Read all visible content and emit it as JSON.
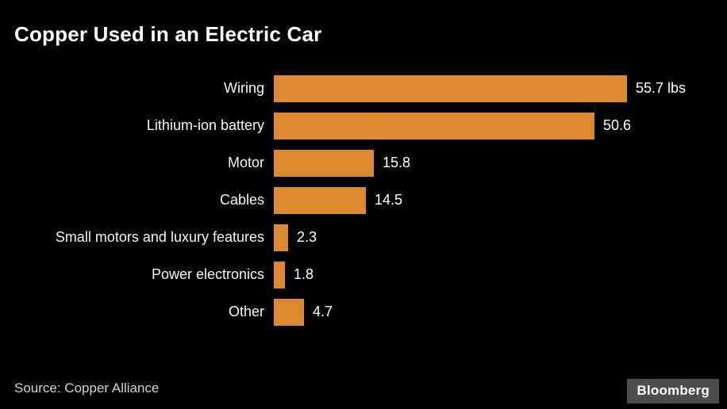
{
  "title": "Copper Used in an Electric Car",
  "source": "Source: Copper Alliance",
  "brand": "Bloomberg",
  "colors": {
    "background": "#000000",
    "bar": "#dd8a2e",
    "title_text": "#ffffff",
    "label_text": "#f5f5f5",
    "source_text": "#d6d2c4",
    "brand_box": "#4d4d4d"
  },
  "chart_data": {
    "type": "bar",
    "orientation": "horizontal",
    "title": "Copper Used in an Electric Car",
    "xlabel": "",
    "ylabel": "",
    "unit": "lbs",
    "xlim": [
      0,
      60
    ],
    "grid": false,
    "legend": false,
    "categories": [
      "Wiring",
      "Lithium-ion battery",
      "Motor",
      "Cables",
      "Small motors and luxury features",
      "Power electronics",
      "Other"
    ],
    "values": [
      55.7,
      50.6,
      15.8,
      14.5,
      2.3,
      1.8,
      4.7
    ],
    "value_labels": [
      "55.7 lbs",
      "50.6",
      "15.8",
      "14.5",
      "2.3",
      "1.8",
      "4.7"
    ]
  }
}
